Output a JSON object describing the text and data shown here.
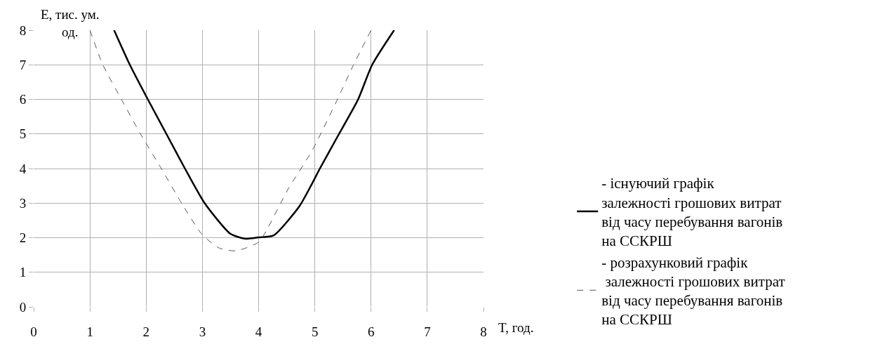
{
  "chart_data": {
    "type": "line",
    "xlabel": "T, год.",
    "ylabel": "E, тис. ум.\nод.",
    "xlim": [
      0,
      8
    ],
    "ylim": [
      0,
      8
    ],
    "xticks": [
      0,
      1,
      2,
      3,
      4,
      5,
      6,
      7,
      8
    ],
    "yticks": [
      0,
      1,
      2,
      3,
      4,
      5,
      6,
      7,
      8
    ],
    "grid": true,
    "legend": "right",
    "series": [
      {
        "name": "- існуючий графік\nзалежності грошових витрат\nвід часу перебування вагонів\nна ССКРШ",
        "color": "#000000",
        "line_style": "solid",
        "x": [
          1.43,
          1.71,
          2.03,
          2.36,
          2.69,
          3.04,
          3.5,
          3.77,
          4.0,
          4.27,
          4.73,
          4.94,
          5.09,
          5.43,
          5.77,
          6.02,
          6.41
        ],
        "values": [
          8,
          7,
          6,
          5,
          4,
          3,
          2.11,
          1.97,
          2.01,
          2.07,
          2.92,
          3.53,
          4,
          5,
          6,
          7,
          8
        ]
      },
      {
        "name": "- розрахунковий графік\n залежності грошових витрат\nвід часу перебування вагонів\nна ССКРШ",
        "color": "#555555",
        "line_style": "dashed",
        "x": [
          1.0,
          1.23,
          1.56,
          1.9,
          2.27,
          2.63,
          2.99,
          3.3,
          3.6,
          4.0,
          4.14,
          4.52,
          4.96,
          5.39,
          5.68,
          6.0
        ],
        "values": [
          8,
          7,
          6,
          5,
          4,
          3,
          2.1,
          1.7,
          1.62,
          1.87,
          2.21,
          3.39,
          4.54,
          5.96,
          6.97,
          8
        ]
      }
    ]
  }
}
